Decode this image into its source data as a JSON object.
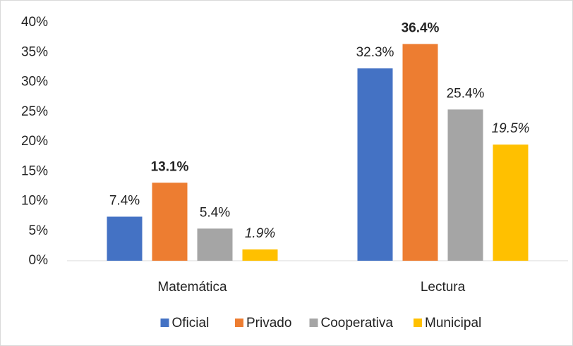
{
  "chart_data": {
    "type": "bar",
    "categories": [
      "Matemática",
      "Lectura"
    ],
    "series": [
      {
        "name": "Oficial",
        "color": "#4472c4",
        "label_style": "normal",
        "values": [
          7.4,
          32.3
        ],
        "value_labels": [
          "7.4%",
          "32.3%"
        ]
      },
      {
        "name": "Privado",
        "color": "#ed7d31",
        "label_style": "bold",
        "values": [
          13.1,
          36.4
        ],
        "value_labels": [
          "13.1%",
          "36.4%"
        ]
      },
      {
        "name": "Cooperativa",
        "color": "#a5a5a5",
        "label_style": "normal",
        "values": [
          5.4,
          25.4
        ],
        "value_labels": [
          "5.4%",
          "25.4%"
        ]
      },
      {
        "name": "Municipal",
        "color": "#ffc000",
        "label_style": "italic",
        "values": [
          1.9,
          19.5
        ],
        "value_labels": [
          "1.9%",
          "19.5%"
        ]
      }
    ],
    "ylim": [
      0,
      40
    ],
    "yticks": [
      {
        "value": 0,
        "label": "0%"
      },
      {
        "value": 5,
        "label": "5%"
      },
      {
        "value": 10,
        "label": "10%"
      },
      {
        "value": 15,
        "label": "15%"
      },
      {
        "value": 20,
        "label": "20%"
      },
      {
        "value": 25,
        "label": "25%"
      },
      {
        "value": 30,
        "label": "30%"
      },
      {
        "value": 35,
        "label": "35%"
      },
      {
        "value": 40,
        "label": "40%"
      }
    ],
    "grid": false,
    "legend": "bottom"
  }
}
